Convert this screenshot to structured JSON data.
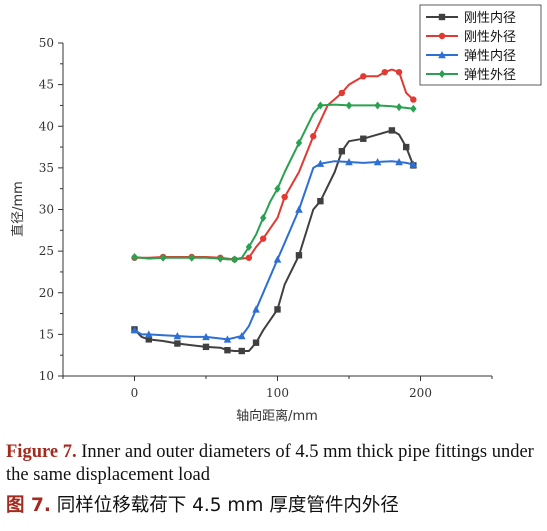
{
  "chart_data": {
    "type": "line",
    "title": "",
    "xlabel": "轴向距离/mm",
    "ylabel": "直径/mm",
    "xlim": [
      -50,
      250
    ],
    "ylim": [
      10,
      50
    ],
    "xticks": [
      0,
      100,
      200
    ],
    "yticks": [
      10,
      15,
      20,
      25,
      30,
      35,
      40,
      45,
      50
    ],
    "grid": false,
    "legend_position": "top-right",
    "series": [
      {
        "name": "刚性内径",
        "color": "#404040",
        "marker": "square",
        "x": [
          0,
          5,
          10,
          20,
          30,
          40,
          50,
          60,
          65,
          70,
          75,
          80,
          85,
          90,
          100,
          105,
          115,
          125,
          130,
          140,
          145,
          150,
          160,
          170,
          180,
          185,
          190,
          195
        ],
        "y": [
          15.6,
          14.7,
          14.4,
          14.2,
          13.9,
          13.7,
          13.5,
          13.4,
          13.1,
          13.0,
          13.0,
          13.0,
          14.0,
          15.5,
          18.0,
          21.0,
          24.5,
          30.0,
          31.0,
          34.5,
          37.0,
          38.2,
          38.5,
          39.0,
          39.5,
          39.0,
          37.5,
          35.3
        ]
      },
      {
        "name": "刚性外径",
        "color": "#e03a32",
        "marker": "circle",
        "x": [
          0,
          10,
          20,
          30,
          40,
          50,
          60,
          65,
          70,
          75,
          80,
          85,
          90,
          100,
          105,
          115,
          125,
          135,
          145,
          150,
          160,
          170,
          175,
          180,
          185,
          190,
          195
        ],
        "y": [
          24.2,
          24.2,
          24.3,
          24.3,
          24.3,
          24.3,
          24.2,
          24.1,
          24.0,
          24.1,
          24.2,
          25.5,
          26.5,
          29.0,
          31.5,
          34.5,
          38.8,
          42.5,
          44.0,
          45.0,
          46.0,
          46.0,
          46.5,
          46.8,
          46.5,
          44.0,
          43.2
        ]
      },
      {
        "name": "弹性内径",
        "color": "#2e6fd4",
        "marker": "triangle",
        "x": [
          0,
          5,
          10,
          20,
          30,
          40,
          50,
          60,
          65,
          70,
          75,
          80,
          85,
          90,
          100,
          105,
          115,
          125,
          130,
          140,
          150,
          160,
          170,
          180,
          185,
          190,
          195
        ],
        "y": [
          15.5,
          15.0,
          15.0,
          14.9,
          14.8,
          14.7,
          14.7,
          14.5,
          14.4,
          14.6,
          14.8,
          16.0,
          18.0,
          20.0,
          24.0,
          26.0,
          30.0,
          35.0,
          35.5,
          35.8,
          35.7,
          35.6,
          35.7,
          35.8,
          35.7,
          35.6,
          35.4
        ]
      },
      {
        "name": "弹性外径",
        "color": "#2aa150",
        "marker": "diamond",
        "x": [
          0,
          10,
          20,
          30,
          40,
          50,
          60,
          65,
          70,
          75,
          80,
          85,
          90,
          95,
          100,
          105,
          115,
          125,
          130,
          140,
          150,
          160,
          170,
          180,
          185,
          190,
          195
        ],
        "y": [
          24.3,
          24.1,
          24.2,
          24.2,
          24.2,
          24.2,
          24.1,
          24.0,
          24.0,
          24.2,
          25.5,
          27.0,
          29.0,
          31.0,
          32.5,
          34.5,
          38.0,
          41.5,
          42.5,
          42.6,
          42.5,
          42.5,
          42.5,
          42.4,
          42.3,
          42.2,
          42.1
        ]
      }
    ]
  },
  "caption": {
    "en_label": "Figure 7.",
    "en_text": " Inner and outer diameters of 4.5 mm thick pipe fittings under the same displacement load",
    "zh_label": "图 7.",
    "zh_text": " 同样位移载荷下 4.5 mm 厚度管件内外径"
  }
}
